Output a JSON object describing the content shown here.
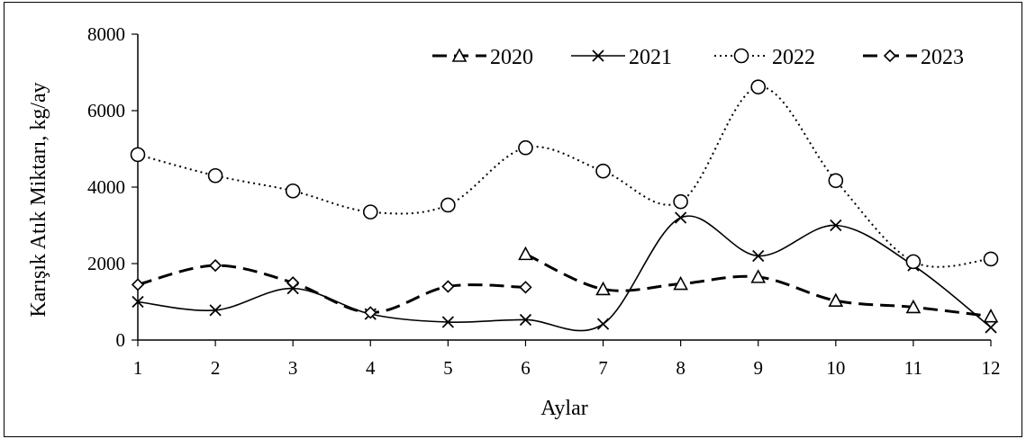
{
  "chart_data": {
    "type": "line",
    "smooth": true,
    "xlabel": "Aylar",
    "ylabel": "Karışık Atık Miktarı, kg/ay",
    "x": [
      1,
      2,
      3,
      4,
      5,
      6,
      7,
      8,
      9,
      10,
      11,
      12
    ],
    "xlim": [
      1,
      12
    ],
    "ylim": [
      0,
      8000
    ],
    "yticks": [
      0,
      2000,
      4000,
      6000,
      8000
    ],
    "grid": false,
    "legend_position": "top-right",
    "series": [
      {
        "name": "2020",
        "marker": "triangle",
        "line_style": "dashed",
        "color": "#000000",
        "x": [
          6,
          7,
          8,
          9,
          10,
          11,
          12
        ],
        "values": [
          2250,
          1330,
          1470,
          1650,
          1030,
          860,
          620
        ]
      },
      {
        "name": "2021",
        "marker": "x",
        "line_style": "solid",
        "color": "#000000",
        "x": [
          1,
          2,
          3,
          4,
          5,
          6,
          7,
          8,
          9,
          10,
          11,
          12
        ],
        "values": [
          1000,
          780,
          1350,
          680,
          470,
          530,
          420,
          3200,
          2200,
          3000,
          1950,
          330
        ]
      },
      {
        "name": "2022",
        "marker": "circle",
        "line_style": "dotted",
        "color": "#000000",
        "x": [
          1,
          2,
          3,
          4,
          5,
          6,
          7,
          8,
          9,
          10,
          11,
          12
        ],
        "values": [
          4850,
          4300,
          3900,
          3350,
          3530,
          5030,
          4420,
          3620,
          6620,
          4170,
          2050,
          2120
        ]
      },
      {
        "name": "2023",
        "marker": "diamond",
        "line_style": "dashed",
        "color": "#000000",
        "x": [
          1,
          2,
          3,
          4,
          5,
          6
        ],
        "values": [
          1450,
          1950,
          1500,
          720,
          1400,
          1380
        ]
      }
    ]
  }
}
